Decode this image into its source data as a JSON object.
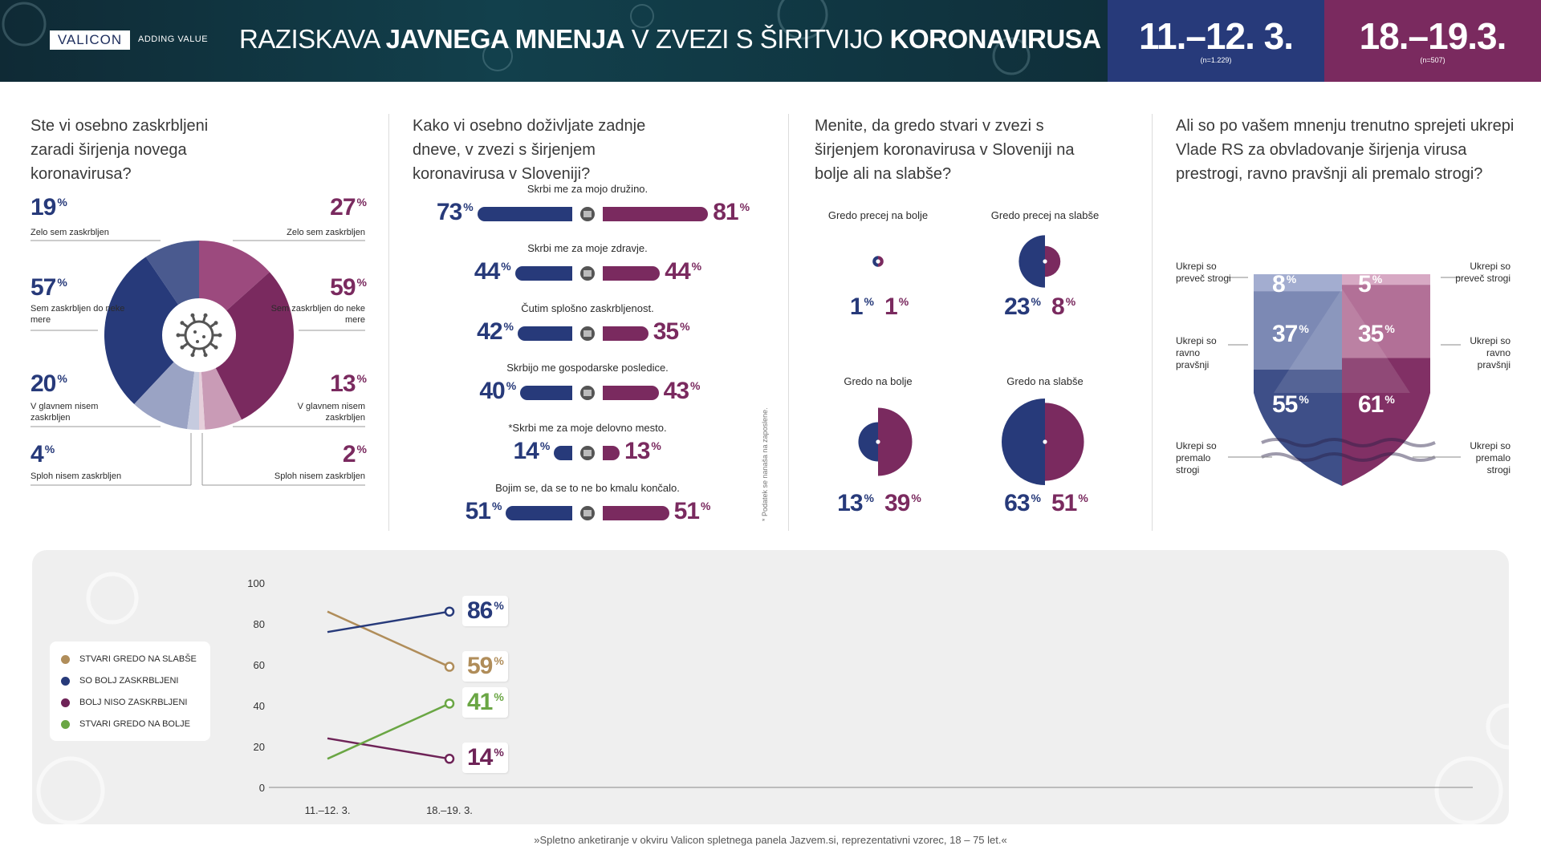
{
  "header": {
    "logo": "VALICON",
    "tagline": "ADDING VALUE",
    "title_p1": "RAZISKAVA ",
    "title_b1": "JAVNEGA MNENJA",
    "title_p2": " V ZVEZI S ŠIRITVIJO ",
    "title_b2": "KORONAVIRUSA",
    "date1": "11.–12. 3.",
    "n1": "(n=1.229)",
    "date2": "18.–19.3.",
    "n2": "(n=507)",
    "color1": "#273a7a",
    "color2": "#7a2a5f"
  },
  "q1": {
    "title": "Ste vi osebno zaskrbljeni zaradi širjenja novega koronavirusa?",
    "icon": "virus-icon"
  },
  "q2": {
    "title": "Kako vi osebno doživljate zadnje dneve, v zvezi s širjenjem koronavirusa v Sloveniji?",
    "side_note": "* Podatek se nanaša na zaposlene."
  },
  "q3": {
    "title": "Menite, da gredo stvari v zvezi s širjenjem koronavirusa v Sloveniji na bolje ali na slabše?"
  },
  "q4": {
    "title": "Ali so po vašem mnenju trenutno sprejeti ukrepi Vlade RS za obvladovanje širjenja virusa prestrogi, ravno pravšnji ali premalo strogi?"
  },
  "unit": "%",
  "footnote": "»Spletno anketiranje v okviru Valicon spletnega panela Jazvem.si, reprezentativni vzorec, 18 – 75 let.«",
  "chart_data": [
    {
      "type": "pie",
      "id": "worry",
      "series": [
        {
          "name": "11.–12. 3.",
          "labels": [
            "Zelo sem zaskrbljen",
            "Sem zaskrbljen do neke mere",
            "V glavnem nisem zaskrbljen",
            "Sploh nisem zaskrbljen"
          ],
          "values": [
            19,
            57,
            20,
            4
          ]
        },
        {
          "name": "18.–19.3.",
          "labels": [
            "Zelo sem zaskrbljen",
            "Sem zaskrbljen do neke mere",
            "V glavnem nisem zaskrbljen",
            "Sploh nisem zaskrbljen"
          ],
          "values": [
            27,
            59,
            13,
            2
          ]
        }
      ]
    },
    {
      "type": "bar",
      "id": "feelings",
      "categories": [
        "Skrbi me za mojo družino.",
        "Skrbi me za moje zdravje.",
        "Čutim splošno zaskrbljenost.",
        "Skrbijo me gospodarske posledice.",
        "*Skrbi me za moje delovno mesto.",
        "Bojim se, da se to ne bo kmalu končalo."
      ],
      "icons": [
        "family-icon",
        "heart-icon",
        "head-alert-icon",
        "euro-alert-icon",
        "briefcase-icon",
        "hourglass-icon"
      ],
      "series": [
        {
          "name": "11.–12. 3.",
          "values": [
            73,
            44,
            42,
            40,
            14,
            51
          ]
        },
        {
          "name": "18.–19.3.",
          "values": [
            81,
            44,
            35,
            43,
            13,
            51
          ]
        }
      ]
    },
    {
      "type": "pie",
      "id": "direction",
      "categories": [
        "Gredo precej na bolje",
        "Gredo precej na slabše",
        "Gredo na bolje",
        "Gredo na slabše"
      ],
      "series": [
        {
          "name": "11.–12. 3.",
          "values": [
            1,
            23,
            13,
            63
          ]
        },
        {
          "name": "18.–19.3.",
          "values": [
            1,
            8,
            39,
            51
          ]
        }
      ]
    },
    {
      "type": "bar",
      "id": "measures",
      "categories": [
        "Ukrepi so preveč strogi",
        "Ukrepi so ravno pravšnji",
        "Ukrepi so premalo strogi"
      ],
      "series": [
        {
          "name": "11.–12. 3.",
          "values": [
            8,
            37,
            55
          ]
        },
        {
          "name": "18.–19.3.",
          "values": [
            5,
            35,
            61
          ]
        }
      ]
    },
    {
      "type": "line",
      "id": "trend",
      "x": [
        "11.–12. 3.",
        "18.–19. 3."
      ],
      "yticks": [
        0,
        20,
        40,
        60,
        80,
        100
      ],
      "ylim": [
        0,
        100
      ],
      "legend_position": "left",
      "series": [
        {
          "name": "STVARI GREDO NA SLABŠE",
          "color": "#b08d5a",
          "values": [
            86,
            59
          ]
        },
        {
          "name": "SO BOLJ ZASKRBLJENI",
          "color": "#273a7a",
          "values": [
            76,
            86
          ]
        },
        {
          "name": "BOLJ NISO ZASKRBLJENI",
          "color": "#6e2357",
          "values": [
            24,
            14
          ]
        },
        {
          "name": "STVARI GREDO NA BOLJE",
          "color": "#6aa644",
          "values": [
            14,
            41
          ]
        }
      ]
    }
  ]
}
